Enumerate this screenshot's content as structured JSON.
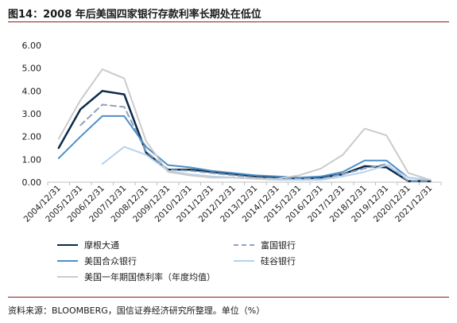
{
  "title": "图14：2008 年后美国四家银行存款利率长期处在低位",
  "source": "资料来源：BLOOMBERG，国信证券经济研究所整理。单位（%）",
  "chart_data": {
    "type": "line",
    "categories": [
      "2004/12/31",
      "2005/12/31",
      "2006/12/31",
      "2007/12/31",
      "2008/12/31",
      "2009/12/31",
      "2010/12/31",
      "2011/12/31",
      "2012/12/31",
      "2013/12/31",
      "2014/12/31",
      "2015/12/31",
      "2016/12/31",
      "2017/12/31",
      "2018/12/31",
      "2019/12/31",
      "2020/12/31",
      "2021/12/31"
    ],
    "ylim": [
      0,
      6
    ],
    "yticks": [
      "0.00",
      "1.00",
      "2.00",
      "3.00",
      "4.00",
      "5.00",
      "6.00"
    ],
    "series": [
      {
        "name": "摩根大通",
        "color": "#0b2a4a",
        "dash": "solid",
        "width": 2.5,
        "values": [
          1.5,
          3.2,
          4.0,
          3.85,
          1.3,
          0.55,
          0.55,
          0.45,
          0.35,
          0.25,
          0.2,
          0.15,
          0.2,
          0.35,
          0.7,
          0.65,
          0.05,
          0.05
        ]
      },
      {
        "name": "富国银行",
        "color": "#8ea2bd",
        "dash": "dashed",
        "width": 2,
        "values": [
          null,
          2.5,
          3.4,
          3.3,
          1.35,
          0.55,
          0.5,
          0.4,
          0.3,
          0.2,
          0.15,
          0.15,
          0.15,
          0.35,
          0.6,
          0.8,
          0.05,
          0.05
        ]
      },
      {
        "name": "美国合众银行",
        "color": "#4d8fc8",
        "dash": "solid",
        "width": 2,
        "values": [
          1.05,
          2.0,
          2.9,
          2.9,
          1.55,
          0.75,
          0.65,
          0.5,
          0.4,
          0.3,
          0.25,
          0.2,
          0.25,
          0.45,
          0.95,
          0.95,
          0.2,
          0.1
        ]
      },
      {
        "name": "硅谷银行",
        "color": "#b5d3ee",
        "dash": "solid",
        "width": 2,
        "values": [
          null,
          null,
          0.8,
          1.55,
          1.2,
          0.5,
          0.35,
          0.25,
          0.2,
          0.15,
          0.1,
          0.1,
          0.1,
          0.25,
          0.45,
          0.75,
          0.2,
          0.1
        ]
      },
      {
        "name": "美国一年期国债利率（年度均值）",
        "color": "#cbcbcb",
        "dash": "solid",
        "width": 2,
        "values": [
          1.9,
          3.6,
          4.95,
          4.55,
          1.8,
          0.45,
          0.3,
          0.2,
          0.2,
          0.15,
          0.15,
          0.3,
          0.6,
          1.2,
          2.35,
          2.05,
          0.4,
          0.1
        ]
      }
    ]
  }
}
